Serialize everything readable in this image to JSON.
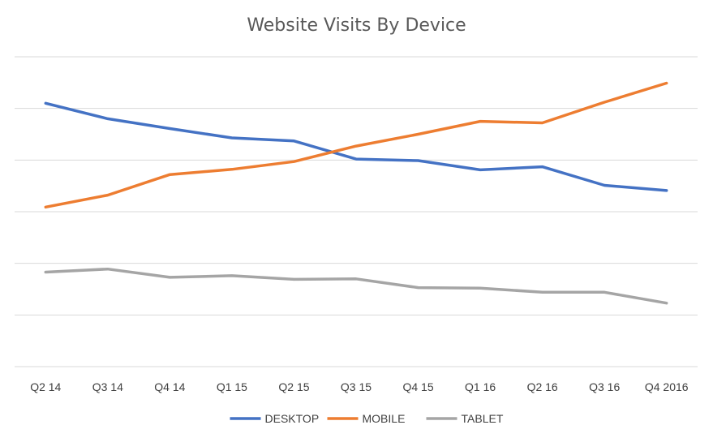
{
  "chart_data": {
    "type": "line",
    "title": "Website Visits By Device",
    "xlabel": "",
    "ylabel": "",
    "categories": [
      "Q2 14",
      "Q3 14",
      "Q4 14",
      "Q1 15",
      "Q2 15",
      "Q3 15",
      "Q4 15",
      "Q1 16",
      "Q2 16",
      "Q3 16",
      "Q4 2016"
    ],
    "ylim": [
      0,
      60
    ],
    "gridlines": [
      0,
      10,
      20,
      30,
      40,
      50,
      60
    ],
    "grid": true,
    "legend": "bottom",
    "series": [
      {
        "name": "DESKTOP",
        "color": "#4472c4",
        "values": [
          51.0,
          48.0,
          46.1,
          44.3,
          43.7,
          40.2,
          39.9,
          38.1,
          38.7,
          35.1,
          34.1
        ]
      },
      {
        "name": "MOBILE",
        "color": "#ed7d31",
        "values": [
          30.9,
          33.2,
          37.2,
          38.2,
          39.7,
          42.7,
          45.0,
          47.5,
          47.2,
          51.2,
          54.9
        ]
      },
      {
        "name": "TABLET",
        "color": "#a5a5a5",
        "values": [
          18.3,
          18.9,
          17.3,
          17.6,
          16.9,
          17.0,
          15.3,
          15.2,
          14.4,
          14.4,
          12.3
        ]
      }
    ]
  }
}
